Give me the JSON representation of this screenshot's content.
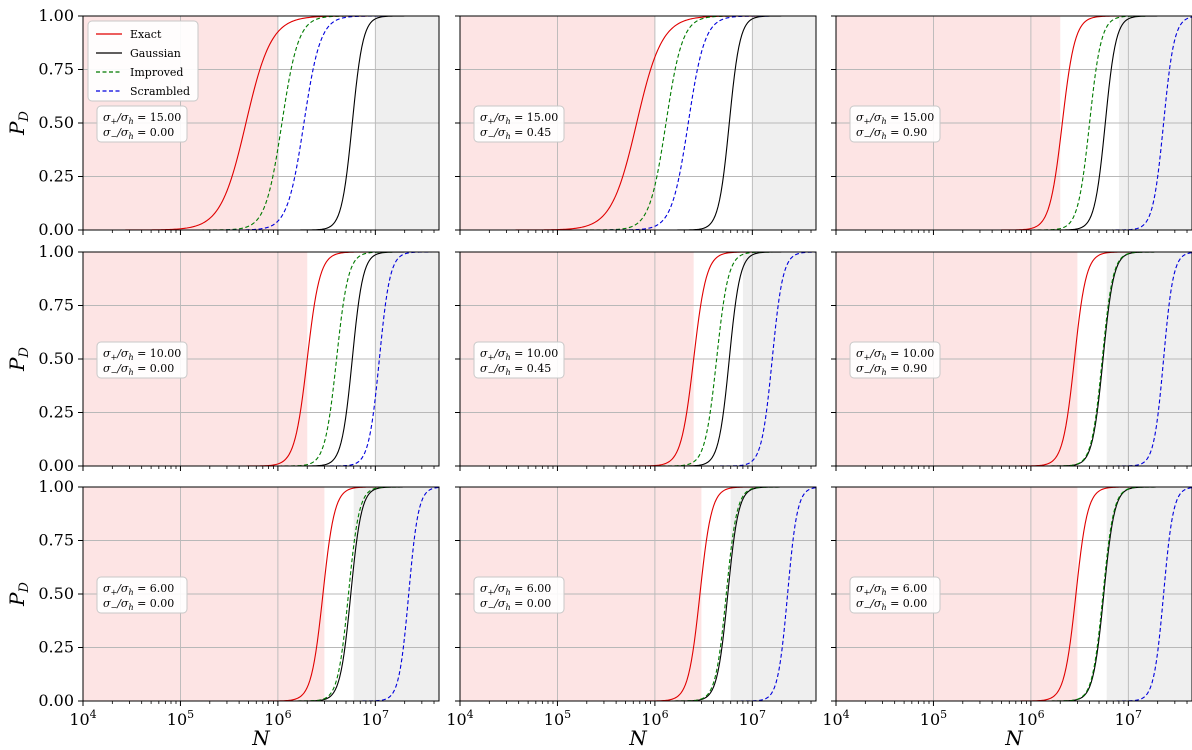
{
  "chart_data": {
    "type": "line",
    "xlabel": "N",
    "ylabel": "P_D",
    "xscale": "log",
    "xlim": [
      10000,
      45000000
    ],
    "ylim": [
      0,
      1
    ],
    "xticks": [
      10000,
      100000,
      1000000,
      10000000
    ],
    "xtick_labels": [
      {
        "base": "10",
        "exp": "4"
      },
      {
        "base": "10",
        "exp": "5"
      },
      {
        "base": "10",
        "exp": "6"
      },
      {
        "base": "10",
        "exp": "7"
      }
    ],
    "yticks": [
      "0.00",
      "0.25",
      "0.50",
      "0.75",
      "1.00"
    ],
    "grid": true,
    "legend_position": "top-left",
    "shading": {
      "left_color": "#fde4e4",
      "right_color": "#efefef",
      "note": "light red below Exact curve region, light grey above 10^7"
    },
    "series_styles": [
      {
        "name": "Exact",
        "color": "#e00000",
        "dash": "solid"
      },
      {
        "name": "Gaussian",
        "color": "#000000",
        "dash": "solid"
      },
      {
        "name": "Improved",
        "color": "#007a00",
        "dash": "dashed"
      },
      {
        "name": "Scrambled",
        "color": "#0000dd",
        "dash": "dashed"
      }
    ],
    "panels": [
      {
        "row": 0,
        "col": 0,
        "sigma_plus": "15.00",
        "sigma_minus": "0.00",
        "shade_left_until": 1000000,
        "shade_right_from": 10000000,
        "curves": {
          "Exact": {
            "mid": 470000,
            "width": 0.13
          },
          "Gaussian": {
            "mid": 5800000,
            "width": 0.055
          },
          "Improved": {
            "mid": 1100000,
            "width": 0.085
          },
          "Scrambled": {
            "mid": 1850000,
            "width": 0.085
          }
        }
      },
      {
        "row": 0,
        "col": 1,
        "sigma_plus": "15.00",
        "sigma_minus": "0.45",
        "shade_left_until": 1000000,
        "shade_right_from": 10000000,
        "curves": {
          "Exact": {
            "mid": 650000,
            "width": 0.13
          },
          "Gaussian": {
            "mid": 5800000,
            "width": 0.055
          },
          "Improved": {
            "mid": 1300000,
            "width": 0.085
          },
          "Scrambled": {
            "mid": 2200000,
            "width": 0.085
          }
        }
      },
      {
        "row": 0,
        "col": 2,
        "sigma_plus": "15.00",
        "sigma_minus": "0.90",
        "shade_left_until": 2000000,
        "shade_right_from": 8000000,
        "curves": {
          "Exact": {
            "mid": 2100000,
            "width": 0.065
          },
          "Gaussian": {
            "mid": 5800000,
            "width": 0.055
          },
          "Improved": {
            "mid": 4000000,
            "width": 0.06
          },
          "Scrambled": {
            "mid": 23000000,
            "width": 0.055
          }
        }
      },
      {
        "row": 1,
        "col": 0,
        "sigma_plus": "10.00",
        "sigma_minus": "0.00",
        "shade_left_until": 2000000,
        "shade_right_from": 10000000,
        "curves": {
          "Exact": {
            "mid": 2000000,
            "width": 0.065
          },
          "Gaussian": {
            "mid": 5800000,
            "width": 0.055
          },
          "Improved": {
            "mid": 4000000,
            "width": 0.06
          },
          "Scrambled": {
            "mid": 11000000,
            "width": 0.055
          }
        }
      },
      {
        "row": 1,
        "col": 1,
        "sigma_plus": "10.00",
        "sigma_minus": "0.45",
        "shade_left_until": 2500000,
        "shade_right_from": 8000000,
        "curves": {
          "Exact": {
            "mid": 2500000,
            "width": 0.065
          },
          "Gaussian": {
            "mid": 5800000,
            "width": 0.055
          },
          "Improved": {
            "mid": 4300000,
            "width": 0.06
          },
          "Scrambled": {
            "mid": 16000000,
            "width": 0.055
          }
        }
      },
      {
        "row": 1,
        "col": 2,
        "sigma_plus": "10.00",
        "sigma_minus": "0.90",
        "shade_left_until": 3000000,
        "shade_right_from": 6000000,
        "curves": {
          "Exact": {
            "mid": 2800000,
            "width": 0.06
          },
          "Gaussian": {
            "mid": 5500000,
            "width": 0.055
          },
          "Improved": {
            "mid": 5400000,
            "width": 0.055
          },
          "Scrambled": {
            "mid": 23000000,
            "width": 0.05
          }
        }
      },
      {
        "row": 2,
        "col": 0,
        "sigma_plus": "6.00",
        "sigma_minus": "0.00",
        "shade_left_until": 3000000,
        "shade_right_from": 6000000,
        "curves": {
          "Exact": {
            "mid": 2900000,
            "width": 0.06
          },
          "Gaussian": {
            "mid": 5600000,
            "width": 0.055
          },
          "Improved": {
            "mid": 5300000,
            "width": 0.055
          },
          "Scrambled": {
            "mid": 22000000,
            "width": 0.05
          }
        }
      },
      {
        "row": 2,
        "col": 1,
        "sigma_plus": "6.00",
        "sigma_minus": "0.00",
        "shade_left_until": 3000000,
        "shade_right_from": 6000000,
        "curves": {
          "Exact": {
            "mid": 2900000,
            "width": 0.06
          },
          "Gaussian": {
            "mid": 5600000,
            "width": 0.055
          },
          "Improved": {
            "mid": 5400000,
            "width": 0.055
          },
          "Scrambled": {
            "mid": 23000000,
            "width": 0.05
          }
        }
      },
      {
        "row": 2,
        "col": 2,
        "sigma_plus": "6.00",
        "sigma_minus": "0.00",
        "shade_left_until": 3000000,
        "shade_right_from": 6000000,
        "curves": {
          "Exact": {
            "mid": 2900000,
            "width": 0.06
          },
          "Gaussian": {
            "mid": 5600000,
            "width": 0.055
          },
          "Improved": {
            "mid": 5500000,
            "width": 0.055
          },
          "Scrambled": {
            "mid": 23000000,
            "width": 0.05
          }
        }
      }
    ]
  }
}
